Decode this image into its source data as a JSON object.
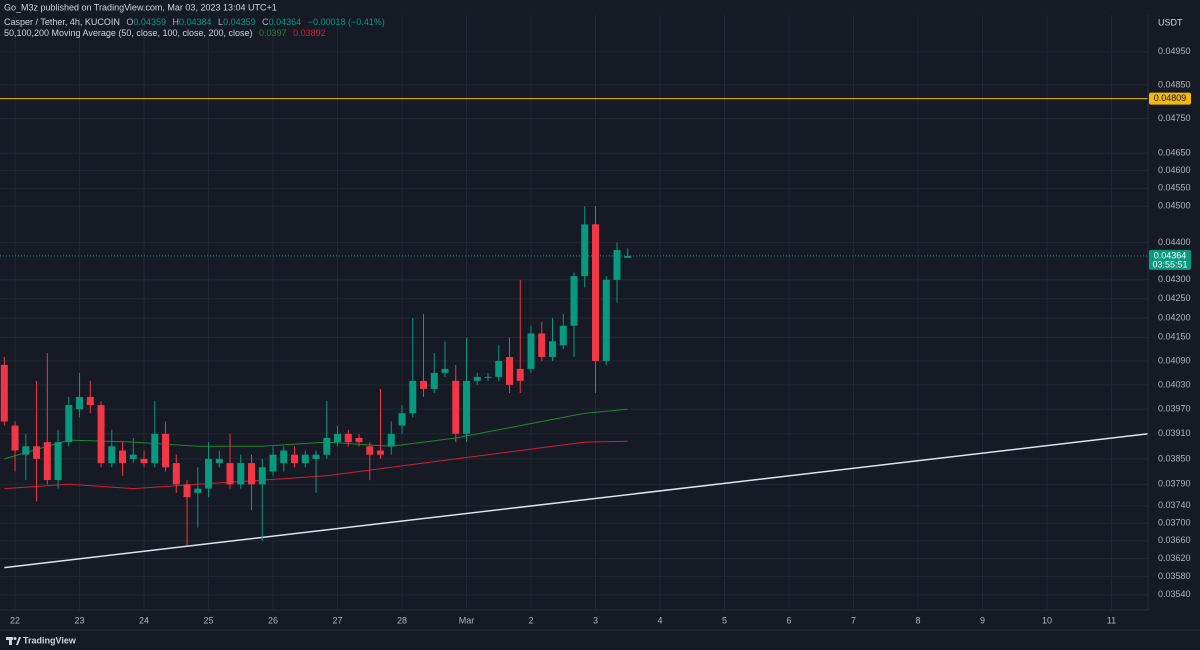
{
  "header": {
    "published": "Go_M3z published on TradingView.com, Mar 03, 2023 13:04 UTC+1"
  },
  "footer": {
    "brand": "TradingView"
  },
  "chart_data": {
    "type": "candlestick",
    "title": "Casper / Tether, 4h, KUCOIN",
    "legend_labels": [
      "O",
      "H",
      "L",
      "C"
    ],
    "change_label": "−0.00018 (−0.41%)",
    "y_axis_label": "USDT",
    "countdown": "03:55:51",
    "up_color": "#089981",
    "down_color": "#f23645",
    "log_scale": true,
    "grid": true,
    "x": [
      0,
      1,
      2,
      3,
      4,
      5,
      6,
      7,
      8,
      9,
      10,
      11,
      12,
      13,
      14,
      15,
      16,
      17,
      18,
      19,
      20,
      21,
      22,
      23,
      24,
      25,
      26,
      27,
      28,
      29,
      30,
      31,
      32,
      33,
      34,
      35,
      36,
      37,
      38,
      39,
      40,
      41,
      42,
      43,
      44,
      45,
      46,
      47,
      48,
      49,
      50,
      51,
      52,
      53,
      54,
      55,
      56,
      57,
      58
    ],
    "open": [
      0.0408,
      0.0393,
      0.0386,
      0.0388,
      0.0389,
      0.038,
      0.0389,
      0.0397,
      0.04,
      0.0398,
      0.0384,
      0.0387,
      0.0385,
      0.0385,
      0.0384,
      0.0391,
      0.0384,
      0.0379,
      0.0377,
      0.0378,
      0.0384,
      0.0384,
      0.0379,
      0.0384,
      0.0379,
      0.0382,
      0.0384,
      0.0386,
      0.0384,
      0.0385,
      0.0386,
      0.0389,
      0.0391,
      0.039,
      0.0388,
      0.0387,
      0.0388,
      0.0393,
      0.0396,
      0.0404,
      0.0402,
      0.0406,
      0.0404,
      0.0391,
      0.0404,
      0.0405,
      0.0405,
      0.041,
      0.0407,
      0.0407,
      0.0416,
      0.041,
      0.0413,
      0.0418,
      0.0431,
      0.0445,
      0.0409,
      0.043,
      0.04359
    ],
    "high": [
      0.041,
      0.0394,
      0.0391,
      0.0404,
      0.0411,
      0.0392,
      0.04,
      0.0406,
      0.0404,
      0.0399,
      0.0392,
      0.0389,
      0.039,
      0.0387,
      0.0399,
      0.0394,
      0.0386,
      0.038,
      0.0383,
      0.0389,
      0.0387,
      0.0391,
      0.0386,
      0.0386,
      0.0385,
      0.0388,
      0.0388,
      0.0388,
      0.0387,
      0.0387,
      0.0399,
      0.0393,
      0.0392,
      0.0391,
      0.0389,
      0.0402,
      0.0394,
      0.0398,
      0.042,
      0.0421,
      0.0411,
      0.0414,
      0.0408,
      0.0415,
      0.0406,
      0.0406,
      0.0413,
      0.0415,
      0.043,
      0.0418,
      0.0419,
      0.042,
      0.0421,
      0.0432,
      0.045,
      0.045,
      0.0431,
      0.044,
      0.04384
    ],
    "low": [
      0.0393,
      0.0382,
      0.038,
      0.0375,
      0.0379,
      0.0378,
      0.0388,
      0.0395,
      0.0396,
      0.0383,
      0.0383,
      0.0381,
      0.0384,
      0.0383,
      0.0383,
      0.0382,
      0.0377,
      0.0365,
      0.0369,
      0.0376,
      0.0383,
      0.0378,
      0.0378,
      0.0373,
      0.0366,
      0.0381,
      0.0382,
      0.0383,
      0.0383,
      0.0377,
      0.0385,
      0.0388,
      0.0388,
      0.0388,
      0.038,
      0.0385,
      0.0386,
      0.0391,
      0.0395,
      0.04,
      0.0401,
      0.0405,
      0.0389,
      0.0389,
      0.0403,
      0.0404,
      0.0404,
      0.0401,
      0.0401,
      0.0406,
      0.0409,
      0.0409,
      0.0412,
      0.041,
      0.0428,
      0.0401,
      0.0408,
      0.0424,
      0.04359
    ],
    "close": [
      0.0394,
      0.0387,
      0.0388,
      0.0385,
      0.038,
      0.0389,
      0.0398,
      0.04,
      0.0398,
      0.0384,
      0.0388,
      0.0384,
      0.0386,
      0.0384,
      0.0391,
      0.0383,
      0.0379,
      0.0376,
      0.0378,
      0.0385,
      0.0385,
      0.0379,
      0.0384,
      0.0379,
      0.0383,
      0.0386,
      0.0387,
      0.0384,
      0.0386,
      0.0386,
      0.039,
      0.0391,
      0.0389,
      0.0389,
      0.0386,
      0.0386,
      0.0391,
      0.0396,
      0.0404,
      0.0402,
      0.0406,
      0.0407,
      0.0391,
      0.0404,
      0.0405,
      0.0405,
      0.0409,
      0.0403,
      0.0404,
      0.0416,
      0.041,
      0.0414,
      0.0418,
      0.0431,
      0.0445,
      0.0409,
      0.043,
      0.0438,
      0.04364
    ],
    "moving_averages": {
      "name": "50,100,200 Moving Average (50, close, 100, close, 200, close)",
      "series": [
        {
          "color": "#1b8a2a",
          "x": [
            0,
            6,
            12,
            18,
            24,
            30,
            36,
            42,
            48,
            54,
            58
          ],
          "values": [
            0.0385,
            0.03895,
            0.0389,
            0.0388,
            0.0388,
            0.0389,
            0.0388,
            0.039,
            0.0393,
            0.0396,
            0.0397
          ]
        },
        {
          "color": "#d1202f",
          "x": [
            0,
            6,
            12,
            18,
            24,
            30,
            36,
            42,
            48,
            54,
            58
          ],
          "values": [
            0.0378,
            0.0379,
            0.0378,
            0.0379,
            0.038,
            0.0381,
            0.0383,
            0.0385,
            0.0387,
            0.0389,
            0.03892
          ]
        }
      ]
    },
    "level_line": {
      "value": 0.04809,
      "color": "#f0b90b"
    },
    "trendline": {
      "x": [
        0,
        106.4
      ],
      "values": [
        0.036,
        0.0391
      ],
      "color": "#e0e3eb"
    },
    "xlim": [
      -0.4,
      106.4
    ],
    "xticks": [
      {
        "value": 1,
        "label": "22"
      },
      {
        "value": 7,
        "label": "23"
      },
      {
        "value": 13,
        "label": "24"
      },
      {
        "value": 19,
        "label": "25"
      },
      {
        "value": 25,
        "label": "26"
      },
      {
        "value": 31,
        "label": "27"
      },
      {
        "value": 37,
        "label": "28"
      },
      {
        "value": 43,
        "label": "Mar"
      },
      {
        "value": 49,
        "label": "2"
      },
      {
        "value": 55,
        "label": "3"
      },
      {
        "value": 61,
        "label": "4"
      },
      {
        "value": 67,
        "label": "5"
      },
      {
        "value": 73,
        "label": "6"
      },
      {
        "value": 79,
        "label": "7"
      },
      {
        "value": 85,
        "label": "8"
      },
      {
        "value": 91,
        "label": "9"
      },
      {
        "value": 97,
        "label": "10"
      },
      {
        "value": 103,
        "label": "11"
      }
    ],
    "ylim": [
      0.03507,
      0.05064
    ],
    "yticks": [
      {
        "value": 0.0495,
        "label": "0.04950"
      },
      {
        "value": 0.0485,
        "label": "0.04850"
      },
      {
        "value": 0.0475,
        "label": "0.04750"
      },
      {
        "value": 0.0465,
        "label": "0.04650"
      },
      {
        "value": 0.046,
        "label": "0.04600"
      },
      {
        "value": 0.0455,
        "label": "0.04550"
      },
      {
        "value": 0.045,
        "label": "0.04500"
      },
      {
        "value": 0.044,
        "label": "0.04400"
      },
      {
        "value": 0.043,
        "label": "0.04300"
      },
      {
        "value": 0.0425,
        "label": "0.04250"
      },
      {
        "value": 0.042,
        "label": "0.04200"
      },
      {
        "value": 0.0415,
        "label": "0.04150"
      },
      {
        "value": 0.0409,
        "label": "0.04090"
      },
      {
        "value": 0.0403,
        "label": "0.04030"
      },
      {
        "value": 0.0397,
        "label": "0.03970"
      },
      {
        "value": 0.0391,
        "label": "0.03910"
      },
      {
        "value": 0.0385,
        "label": "0.03850"
      },
      {
        "value": 0.0379,
        "label": "0.03790"
      },
      {
        "value": 0.0374,
        "label": "0.03740"
      },
      {
        "value": 0.037,
        "label": "0.03700"
      },
      {
        "value": 0.0366,
        "label": "0.03660"
      },
      {
        "value": 0.0362,
        "label": "0.03620"
      },
      {
        "value": 0.0358,
        "label": "0.03580"
      },
      {
        "value": 0.0354,
        "label": "0.03540"
      }
    ]
  }
}
